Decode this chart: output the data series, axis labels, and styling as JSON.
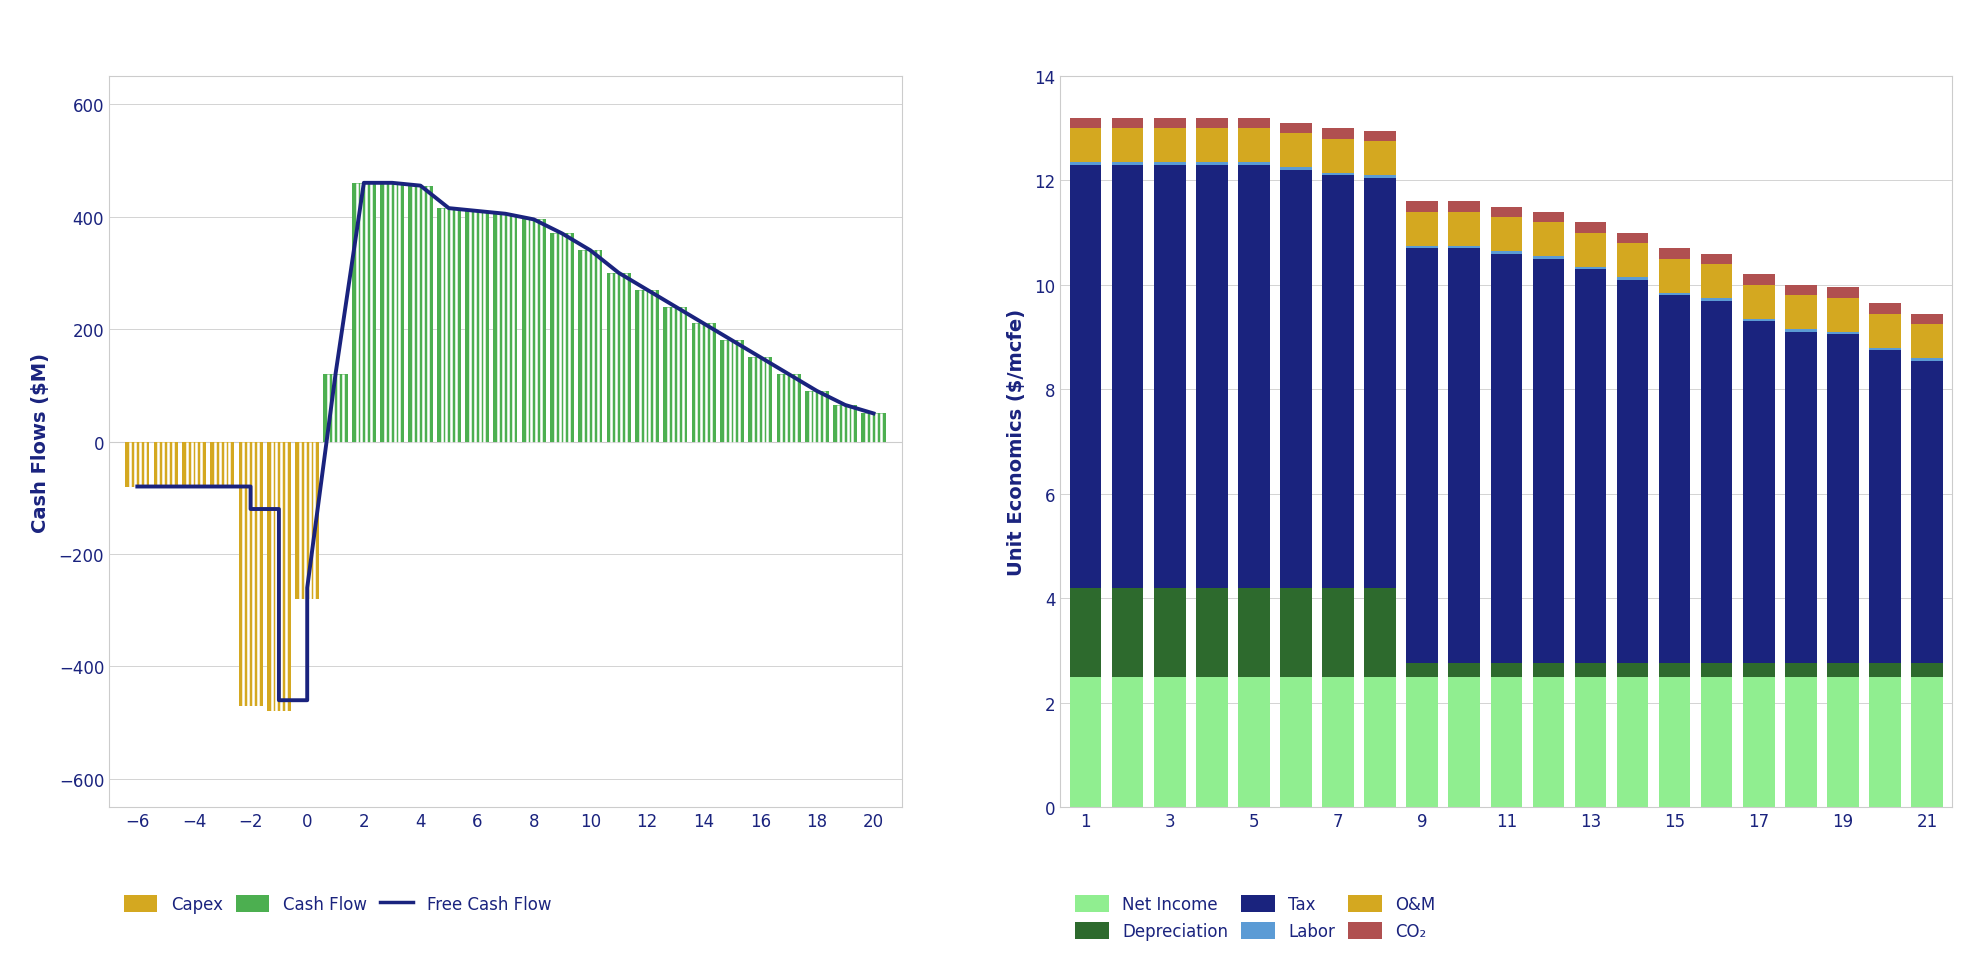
{
  "left_chart": {
    "ylabel": "Cash Flows ($M)",
    "xlim": [
      -7,
      21
    ],
    "ylim": [
      -650,
      650
    ],
    "yticks": [
      -600,
      -400,
      -200,
      0,
      200,
      400,
      600
    ],
    "xticks": [
      -6,
      -4,
      -2,
      0,
      2,
      4,
      6,
      8,
      10,
      12,
      14,
      16,
      18,
      20
    ],
    "capex_x": [
      -6,
      -5,
      -4,
      -3,
      -2,
      -1,
      0
    ],
    "capex_y": [
      -80,
      -80,
      -80,
      -80,
      -470,
      -480,
      -280
    ],
    "cashflow_x": [
      1,
      2,
      3,
      4,
      5,
      6,
      7,
      8,
      9,
      10,
      11,
      12,
      13,
      14,
      15,
      16,
      17,
      18,
      19,
      20
    ],
    "cashflow_y": [
      120,
      460,
      460,
      455,
      415,
      410,
      405,
      395,
      370,
      340,
      300,
      270,
      240,
      210,
      180,
      150,
      120,
      90,
      65,
      50
    ],
    "free_cashflow_x": [
      -6,
      -4,
      -4,
      -2,
      -2,
      -1,
      -1,
      0,
      0,
      1,
      2,
      3,
      4,
      5,
      6,
      7,
      8,
      9,
      10,
      11,
      12,
      13,
      14,
      15,
      16,
      17,
      18,
      19,
      20
    ],
    "free_cashflow_y": [
      -80,
      -80,
      -80,
      -80,
      -120,
      -120,
      -460,
      -460,
      -260,
      120,
      460,
      460,
      455,
      415,
      410,
      405,
      395,
      370,
      340,
      300,
      270,
      240,
      210,
      180,
      150,
      120,
      90,
      65,
      50
    ],
    "capex_color": "#D4A820",
    "cashflow_color": "#4CAF50",
    "free_cashflow_color": "#1a237e",
    "bar_width": 0.85,
    "n_stripes": 5,
    "ylabel_color": "#1a237e",
    "ylabel_fontsize": 14
  },
  "right_chart": {
    "ylabel": "Unit Economics ($/mcfe)",
    "xlim": [
      0.4,
      21.6
    ],
    "ylim": [
      0,
      14
    ],
    "yticks": [
      0,
      2,
      4,
      6,
      8,
      10,
      12,
      14
    ],
    "xticks": [
      1,
      3,
      5,
      7,
      9,
      11,
      13,
      15,
      17,
      19,
      21
    ],
    "years": [
      1,
      2,
      3,
      4,
      5,
      6,
      7,
      8,
      9,
      10,
      11,
      12,
      13,
      14,
      15,
      16,
      17,
      18,
      19,
      20,
      21
    ],
    "net_income": [
      2.5,
      2.5,
      2.5,
      2.5,
      2.5,
      2.5,
      2.5,
      2.5,
      2.5,
      2.5,
      2.5,
      2.5,
      2.5,
      2.5,
      2.5,
      2.5,
      2.5,
      2.5,
      2.5,
      2.5,
      2.5
    ],
    "depreciation": [
      1.7,
      1.7,
      1.7,
      1.7,
      1.7,
      1.7,
      1.7,
      1.7,
      0.25,
      0.25,
      0.25,
      0.25,
      0.25,
      0.25,
      0.25,
      0.25,
      0.25,
      0.25,
      0.25,
      0.25,
      0.25
    ],
    "tax": [
      8.1,
      8.1,
      8.1,
      8.1,
      8.1,
      8.0,
      7.9,
      7.85,
      7.95,
      7.95,
      7.85,
      7.75,
      7.55,
      7.35,
      7.05,
      6.95,
      6.55,
      6.35,
      6.3,
      6.0,
      5.8
    ],
    "labor": [
      0.05,
      0.05,
      0.05,
      0.05,
      0.05,
      0.05,
      0.05,
      0.05,
      0.05,
      0.05,
      0.05,
      0.05,
      0.05,
      0.05,
      0.05,
      0.05,
      0.05,
      0.05,
      0.05,
      0.05,
      0.05
    ],
    "om": [
      0.65,
      0.65,
      0.65,
      0.65,
      0.65,
      0.65,
      0.65,
      0.65,
      0.65,
      0.65,
      0.65,
      0.65,
      0.65,
      0.65,
      0.65,
      0.65,
      0.65,
      0.65,
      0.65,
      0.65,
      0.65
    ],
    "co2": [
      0.2,
      0.2,
      0.2,
      0.2,
      0.2,
      0.2,
      0.2,
      0.2,
      0.2,
      0.2,
      0.2,
      0.2,
      0.2,
      0.2,
      0.2,
      0.2,
      0.2,
      0.2,
      0.2,
      0.2,
      0.2
    ],
    "net_income_color": "#90EE90",
    "depreciation_color": "#2d6a2d",
    "tax_color": "#1a237e",
    "labor_color": "#5b9bd5",
    "om_color": "#D4A820",
    "co2_color": "#b05050",
    "bar_width": 0.75,
    "ylabel_color": "#1a237e",
    "ylabel_fontsize": 14
  },
  "legend": {
    "capex_label": "Capex",
    "cashflow_label": "Cash Flow",
    "free_cashflow_label": "Free Cash Flow",
    "net_income_label": "Net Income",
    "depreciation_label": "Depreciation",
    "tax_label": "Tax",
    "labor_label": "Labor",
    "om_label": "O&M",
    "co2_label": "CO₂"
  },
  "background_color": "#ffffff",
  "text_color": "#1a237e",
  "grid_color": "#cccccc"
}
